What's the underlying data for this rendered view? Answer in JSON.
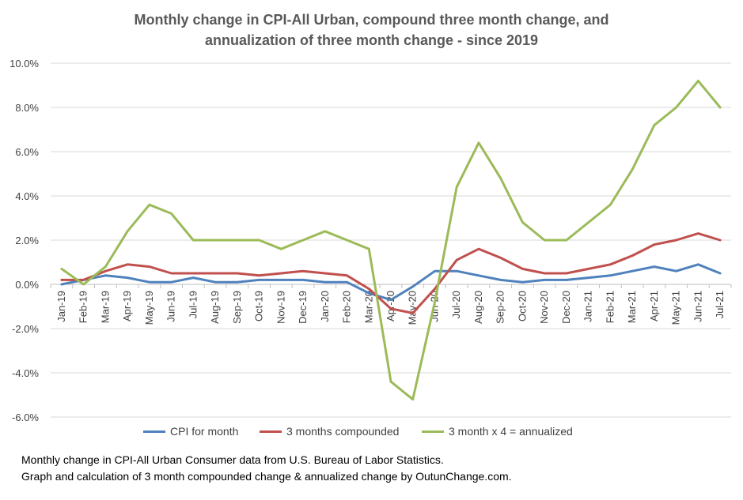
{
  "chart_data": {
    "type": "line",
    "title": [
      "Monthly change in CPI-All Urban, compound three month change, and",
      "annualization  of three month change - since 2019"
    ],
    "categories": [
      "Jan-19",
      "Feb-19",
      "Mar-19",
      "Apr-19",
      "May-19",
      "Jun-19",
      "Jul-19",
      "Aug-19",
      "Sep-19",
      "Oct-19",
      "Nov-19",
      "Dec-19",
      "Jan-20",
      "Feb-20",
      "Mar-20",
      "Apr-20",
      "May-20",
      "Jun-20",
      "Jul-20",
      "Aug-20",
      "Sep-20",
      "Oct-20",
      "Nov-20",
      "Dec-20",
      "Jan-21",
      "Feb-21",
      "Mar-21",
      "Apr-21",
      "May-21",
      "Jun-21",
      "Jul-21"
    ],
    "series": [
      {
        "name": "CPI for month",
        "color": "#4f81bd",
        "values": [
          0.0,
          0.2,
          0.4,
          0.3,
          0.1,
          0.1,
          0.3,
          0.1,
          0.1,
          0.2,
          0.2,
          0.2,
          0.1,
          0.1,
          -0.4,
          -0.7,
          -0.1,
          0.6,
          0.6,
          0.4,
          0.2,
          0.1,
          0.2,
          0.2,
          0.3,
          0.4,
          0.6,
          0.8,
          0.6,
          0.9,
          0.5
        ]
      },
      {
        "name": "3 months compounded",
        "color": "#c0504d",
        "values": [
          0.2,
          0.2,
          0.6,
          0.9,
          0.8,
          0.5,
          0.5,
          0.5,
          0.5,
          0.4,
          0.5,
          0.6,
          0.5,
          0.4,
          -0.2,
          -1.1,
          -1.3,
          -0.2,
          1.1,
          1.6,
          1.2,
          0.7,
          0.5,
          0.5,
          0.7,
          0.9,
          1.3,
          1.8,
          2.0,
          2.3,
          2.0
        ]
      },
      {
        "name": "3 month x 4 = annualized",
        "color": "#9bbb59",
        "values": [
          0.7,
          0.0,
          0.8,
          2.4,
          3.6,
          3.2,
          2.0,
          2.0,
          2.0,
          2.0,
          1.6,
          2.0,
          2.4,
          2.0,
          1.6,
          -4.4,
          -5.2,
          -0.8,
          4.4,
          6.4,
          4.8,
          2.8,
          2.0,
          2.0,
          2.8,
          3.6,
          5.2,
          7.2,
          8.0,
          9.2,
          8.0
        ]
      }
    ],
    "y_ticks": [
      "10.0%",
      "8.0%",
      "6.0%",
      "4.0%",
      "2.0%",
      "0.0%",
      "-2.0%",
      "-4.0%",
      "-6.0%"
    ],
    "ylim": [
      -6,
      10
    ],
    "grid": true,
    "legend_position": "bottom",
    "footnote": [
      "Monthly change in CPI-All Urban Consumer data from U.S. Bureau of Labor Statistics.",
      "Graph and calculation of 3 month compounded  change & annualized change by OutunChange.com."
    ]
  }
}
